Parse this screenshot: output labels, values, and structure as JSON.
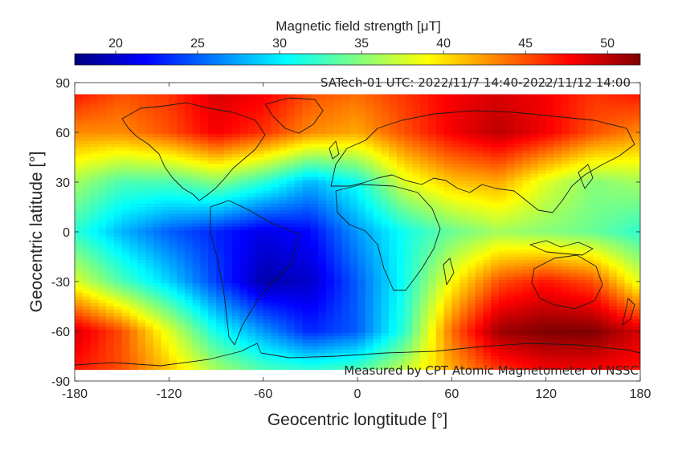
{
  "chart_data": {
    "type": "heatmap",
    "title": "SATech-01  UTC: 2022/11/7 14:40-2022/11/12 14:00",
    "annotation": "Measured by CPT Atomic Magnetometer of NSSC",
    "xlabel": "Geocentric longtitude [°]",
    "ylabel": "Geocentric latitude [°]",
    "xlim": [
      -180,
      180
    ],
    "ylim": [
      -90,
      90
    ],
    "data_lat_range": [
      -83,
      83
    ],
    "xticks": [
      -180,
      -120,
      -60,
      0,
      60,
      120,
      180
    ],
    "yticks": [
      90,
      60,
      30,
      0,
      -30,
      -60,
      -90
    ],
    "colorbar": {
      "label": "Magnetic field strength [μT]",
      "range": [
        17.5,
        52
      ],
      "ticks": [
        20,
        25,
        30,
        35,
        40,
        45,
        50
      ],
      "colormap": "jet",
      "position": "top"
    },
    "field_samples": {
      "longitudes": [
        -180,
        -150,
        -120,
        -90,
        -60,
        -30,
        0,
        30,
        60,
        90,
        120,
        150,
        180
      ],
      "latitudes": [
        83,
        60,
        30,
        0,
        -30,
        -60,
        -83
      ],
      "values_uT": [
        [
          47,
          45,
          46,
          49,
          48,
          45,
          44,
          46,
          48,
          49,
          48,
          46,
          47
        ],
        [
          43,
          43,
          45,
          48,
          46,
          43,
          42,
          45,
          48,
          50,
          48,
          45,
          43
        ],
        [
          36,
          33,
          33,
          35,
          32,
          28,
          31,
          38,
          41,
          42,
          38,
          35,
          36
        ],
        [
          32,
          28,
          25,
          23,
          21,
          22,
          27,
          31,
          34,
          36,
          35,
          34,
          32
        ],
        [
          38,
          33,
          29,
          24,
          19,
          20,
          25,
          31,
          39,
          45,
          47,
          45,
          38
        ],
        [
          49,
          45,
          38,
          31,
          27,
          23,
          25,
          32,
          44,
          51,
          52,
          52,
          49
        ],
        [
          47,
          45,
          41,
          36,
          33,
          32,
          33,
          37,
          42,
          46,
          48,
          48,
          47
        ]
      ]
    },
    "grid": false,
    "basemap": "world coastlines"
  }
}
